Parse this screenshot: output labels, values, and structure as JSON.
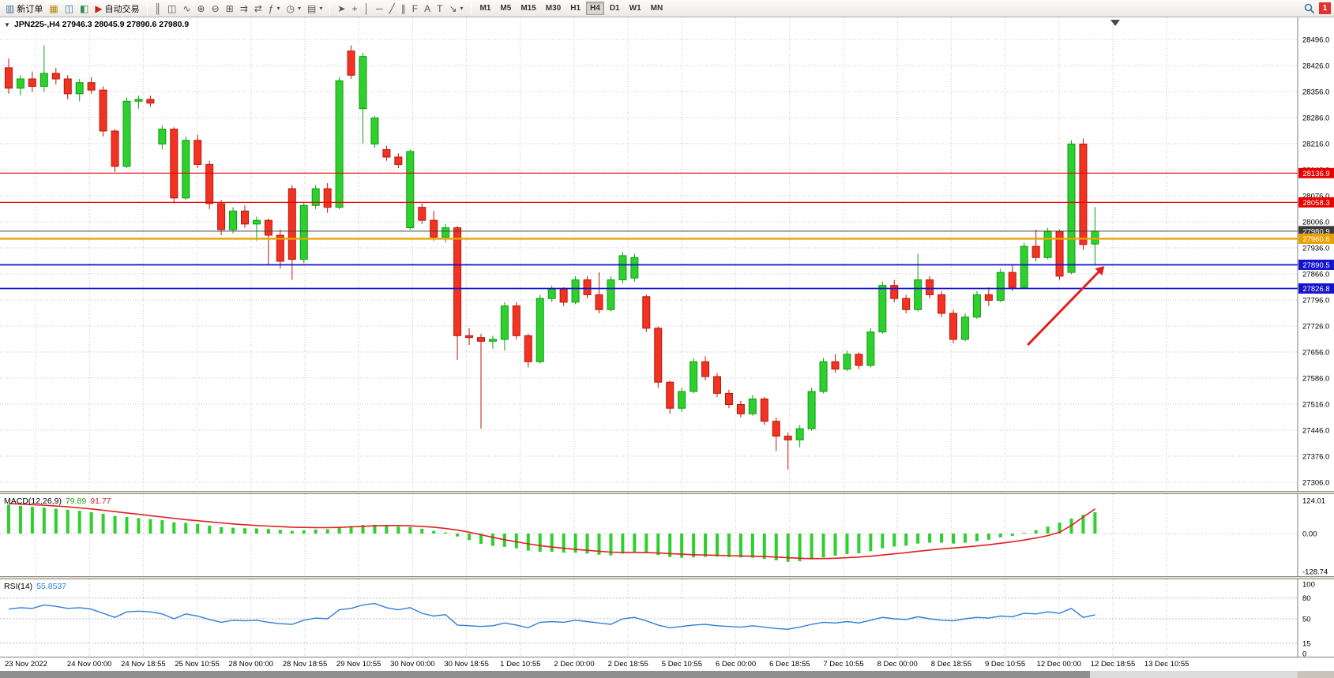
{
  "toolbar": {
    "left_buttons": [
      {
        "name": "new-order",
        "glyph": "▥",
        "glyph_color": "#3a6ea5",
        "label": "新订单"
      },
      {
        "name": "chart-window",
        "glyph": "▦",
        "glyph_color": "#b8860b"
      },
      {
        "name": "profiles",
        "glyph": "◫",
        "glyph_color": "#3a6ea5"
      },
      {
        "name": "market-watch",
        "glyph": "◧",
        "glyph_color": "#2e8b57"
      },
      {
        "name": "auto-trading",
        "glyph": "▶",
        "glyph_color": "#cc2222",
        "label": "自动交易"
      }
    ],
    "chart_buttons": [
      {
        "name": "bars-chart-type",
        "glyph": "║"
      },
      {
        "name": "candles-chart-type",
        "glyph": "◫"
      },
      {
        "name": "line-chart-type",
        "glyph": "∿"
      },
      {
        "name": "zoom-in",
        "glyph": "⊕"
      },
      {
        "name": "zoom-out",
        "glyph": "⊖"
      },
      {
        "name": "tile-windows",
        "glyph": "⊞"
      },
      {
        "name": "auto-scroll",
        "glyph": "⇉"
      },
      {
        "name": "chart-shift",
        "glyph": "⇄"
      },
      {
        "name": "indicators",
        "glyph": "ƒ",
        "dropdown": true
      },
      {
        "name": "periods",
        "glyph": "◷",
        "dropdown": true
      },
      {
        "name": "templates",
        "glyph": "▤",
        "dropdown": true
      }
    ],
    "draw_buttons": [
      {
        "name": "cursor",
        "glyph": "➤"
      },
      {
        "name": "crosshair",
        "glyph": "+"
      },
      {
        "name": "vertical-line",
        "glyph": "│"
      },
      {
        "name": "horizontal-line",
        "glyph": "─"
      },
      {
        "name": "trendline",
        "glyph": "╱"
      },
      {
        "name": "channel",
        "glyph": "∥"
      },
      {
        "name": "fibonacci",
        "glyph": "F"
      },
      {
        "name": "text",
        "glyph": "A"
      },
      {
        "name": "text-label",
        "glyph": "T"
      },
      {
        "name": "arrows",
        "glyph": "↘",
        "dropdown": true
      }
    ],
    "timeframes": [
      "M1",
      "M5",
      "M15",
      "M30",
      "H1",
      "H4",
      "D1",
      "W1",
      "MN"
    ],
    "active_timeframe": "H4",
    "notification_count": "1"
  },
  "chart": {
    "symbol": "JPN225-",
    "period": "H4",
    "title_text": "JPN225-,H4 27946.3 28045.9 27890.6 27980.9",
    "open": "27946.3",
    "high": "28045.9",
    "low": "27890.6",
    "close": "27980.9"
  },
  "chart_data": {
    "type": "candlestick",
    "symbol": "JPN225-",
    "timeframe": "H4",
    "ylim": [
      27280,
      28530
    ],
    "grid": true,
    "colors": {
      "up": "#2fcf2f",
      "up_stroke": "#0f9f0f",
      "down": "#f23222",
      "down_stroke": "#b81808",
      "grid": "#c9c9c9",
      "background": "#ffffff"
    },
    "price_ticks": [
      "28496.0",
      "28426.0",
      "28356.0",
      "28286.0",
      "28216.0",
      "28146.0",
      "28076.0",
      "28006.0",
      "27936.0",
      "27866.0",
      "27796.0",
      "27726.0",
      "27656.0",
      "27586.0",
      "27516.0",
      "27446.0",
      "27376.0",
      "27306.0"
    ],
    "time_labels": [
      "23 Nov 2022",
      "24 Nov 00:00",
      "24 Nov 18:55",
      "25 Nov 10:55",
      "28 Nov 00:00",
      "28 Nov 18:55",
      "29 Nov 10:55",
      "30 Nov 00:00",
      "30 Nov 18:55",
      "1 Dec 10:55",
      "2 Dec 00:00",
      "2 Dec 18:55",
      "5 Dec 10:55",
      "6 Dec 00:00",
      "6 Dec 18:55",
      "7 Dec 10:55",
      "8 Dec 00:00",
      "8 Dec 18:55",
      "9 Dec 10:55",
      "12 Dec 00:00",
      "12 Dec 18:55",
      "13 Dec 10:55"
    ],
    "hlines": [
      {
        "name": "resistance-1",
        "price": 28136.9,
        "label": "28136.9",
        "color": "#e80000",
        "width": 1.2
      },
      {
        "name": "resistance-2",
        "price": 28058.3,
        "label": "28058.3",
        "color": "#e80000",
        "width": 1.2
      },
      {
        "name": "current-price",
        "price": 27980.9,
        "label": "27980.9",
        "color": "#444444",
        "width": 1,
        "badge": "#3a3a3a"
      },
      {
        "name": "pivot",
        "price": 27960.6,
        "label": "27960.6",
        "color": "#e8a200",
        "width": 2.4,
        "badge": "#e8a200"
      },
      {
        "name": "support-1",
        "price": 27890.5,
        "label": "27890.5",
        "color": "#1414cc",
        "width": 1.8
      },
      {
        "name": "support-2",
        "price": 27826.8,
        "label": "27826.8",
        "color": "#1414cc",
        "width": 1.8
      }
    ],
    "candles": [
      [
        28420,
        28445,
        28350,
        28365
      ],
      [
        28365,
        28400,
        28345,
        28390
      ],
      [
        28390,
        28410,
        28355,
        28370
      ],
      [
        28370,
        28480,
        28355,
        28405
      ],
      [
        28405,
        28420,
        28375,
        28390
      ],
      [
        28390,
        28400,
        28335,
        28350
      ],
      [
        28350,
        28390,
        28330,
        28380
      ],
      [
        28380,
        28395,
        28350,
        28360
      ],
      [
        28360,
        28370,
        28235,
        28250
      ],
      [
        28250,
        28255,
        28140,
        28155
      ],
      [
        28155,
        28340,
        28150,
        28330
      ],
      [
        28330,
        28345,
        28310,
        28335
      ],
      [
        28335,
        28345,
        28315,
        28325
      ],
      [
        28215,
        28265,
        28200,
        28255
      ],
      [
        28255,
        28260,
        28055,
        28070
      ],
      [
        28070,
        28235,
        28065,
        28225
      ],
      [
        28225,
        28240,
        28150,
        28160
      ],
      [
        28160,
        28170,
        28040,
        28055
      ],
      [
        28055,
        28065,
        27970,
        27985
      ],
      [
        27985,
        28045,
        27975,
        28035
      ],
      [
        28035,
        28050,
        27990,
        28000
      ],
      [
        28000,
        28020,
        27955,
        28010
      ],
      [
        28010,
        28015,
        27890,
        27970
      ],
      [
        27970,
        27985,
        27880,
        27900
      ],
      [
        28095,
        28105,
        27850,
        27905
      ],
      [
        27905,
        28060,
        27895,
        28050
      ],
      [
        28050,
        28105,
        28040,
        28095
      ],
      [
        28095,
        28110,
        28030,
        28045
      ],
      [
        28045,
        28395,
        28040,
        28385
      ],
      [
        28465,
        28480,
        28390,
        28400
      ],
      [
        28310,
        28460,
        28215,
        28450
      ],
      [
        28215,
        28290,
        28205,
        28285
      ],
      [
        28200,
        28210,
        28170,
        28180
      ],
      [
        28180,
        28190,
        28150,
        28160
      ],
      [
        27990,
        28200,
        27985,
        28195
      ],
      [
        28045,
        28055,
        28000,
        28010
      ],
      [
        28010,
        28035,
        27955,
        27965
      ],
      [
        27965,
        28000,
        27950,
        27990
      ],
      [
        27990,
        27995,
        27635,
        27700
      ],
      [
        27700,
        27720,
        27675,
        27695
      ],
      [
        27695,
        27705,
        27450,
        27685
      ],
      [
        27685,
        27700,
        27665,
        27690
      ],
      [
        27690,
        27790,
        27660,
        27780
      ],
      [
        27780,
        27790,
        27690,
        27700
      ],
      [
        27700,
        27705,
        27615,
        27630
      ],
      [
        27630,
        27810,
        27625,
        27800
      ],
      [
        27800,
        27835,
        27790,
        27825
      ],
      [
        27825,
        27830,
        27780,
        27790
      ],
      [
        27790,
        27860,
        27785,
        27850
      ],
      [
        27850,
        27860,
        27800,
        27810
      ],
      [
        27810,
        27870,
        27760,
        27770
      ],
      [
        27770,
        27860,
        27765,
        27850
      ],
      [
        27850,
        27925,
        27840,
        27915
      ],
      [
        27855,
        27920,
        27845,
        27910
      ],
      [
        27805,
        27810,
        27710,
        27720
      ],
      [
        27720,
        27725,
        27560,
        27575
      ],
      [
        27575,
        27580,
        27490,
        27505
      ],
      [
        27505,
        27560,
        27495,
        27550
      ],
      [
        27550,
        27640,
        27545,
        27630
      ],
      [
        27630,
        27645,
        27580,
        27590
      ],
      [
        27590,
        27600,
        27535,
        27545
      ],
      [
        27545,
        27555,
        27505,
        27515
      ],
      [
        27515,
        27525,
        27480,
        27490
      ],
      [
        27490,
        27540,
        27485,
        27530
      ],
      [
        27530,
        27535,
        27460,
        27470
      ],
      [
        27470,
        27480,
        27390,
        27430
      ],
      [
        27430,
        27440,
        27340,
        27420
      ],
      [
        27420,
        27460,
        27400,
        27450
      ],
      [
        27450,
        27560,
        27445,
        27550
      ],
      [
        27550,
        27640,
        27545,
        27630
      ],
      [
        27630,
        27650,
        27600,
        27610
      ],
      [
        27610,
        27660,
        27605,
        27650
      ],
      [
        27650,
        27655,
        27610,
        27620
      ],
      [
        27620,
        27720,
        27615,
        27710
      ],
      [
        27710,
        27845,
        27705,
        27835
      ],
      [
        27835,
        27850,
        27790,
        27800
      ],
      [
        27800,
        27810,
        27760,
        27770
      ],
      [
        27770,
        27920,
        27765,
        27850
      ],
      [
        27850,
        27860,
        27800,
        27810
      ],
      [
        27810,
        27820,
        27750,
        27760
      ],
      [
        27760,
        27770,
        27680,
        27690
      ],
      [
        27690,
        27760,
        27685,
        27750
      ],
      [
        27750,
        27820,
        27745,
        27810
      ],
      [
        27810,
        27830,
        27780,
        27795
      ],
      [
        27795,
        27880,
        27790,
        27870
      ],
      [
        27870,
        27890,
        27820,
        27830
      ],
      [
        27830,
        27950,
        27825,
        27940
      ],
      [
        27940,
        27985,
        27900,
        27910
      ],
      [
        27910,
        27990,
        27905,
        27980
      ],
      [
        27980,
        27985,
        27850,
        27860
      ],
      [
        27870,
        28225,
        27865,
        28215
      ],
      [
        28215,
        28230,
        27930,
        27945
      ],
      [
        27946.3,
        28045.9,
        27890.6,
        27980.9
      ]
    ],
    "macd": {
      "label": "MACD(12,26,9)",
      "value_main": "79.89",
      "value_signal": "91.77",
      "signal_color": "#e02020",
      "scale": [
        {
          "label": "124.01",
          "value": 124.01
        },
        {
          "label": "0.00",
          "value": 0
        },
        {
          "label": "-128.74",
          "value": -128.74
        }
      ],
      "histogram": [
        108,
        104,
        100,
        97,
        93,
        89,
        85,
        80,
        74,
        66,
        62,
        58,
        54,
        50,
        42,
        40,
        36,
        30,
        24,
        22,
        20,
        19,
        17,
        14,
        10,
        12,
        15,
        16,
        22,
        28,
        32,
        33,
        30,
        26,
        24,
        18,
        10,
        4,
        -10,
        -22,
        -35,
        -42,
        -45,
        -50,
        -58,
        -62,
        -62,
        -65,
        -65,
        -68,
        -72,
        -74,
        -68,
        -62,
        -65,
        -73,
        -80,
        -82,
        -81,
        -79,
        -78,
        -80,
        -81,
        -82,
        -86,
        -91,
        -96,
        -94,
        -88,
        -81,
        -75,
        -70,
        -67,
        -60,
        -50,
        -44,
        -41,
        -34,
        -31,
        -31,
        -34,
        -31,
        -26,
        -21,
        -13,
        -8,
        3,
        13,
        26,
        41,
        56,
        70,
        79.89
      ],
      "signal": [
        112,
        110,
        108,
        106,
        103,
        100,
        96,
        92,
        87,
        82,
        77,
        72,
        67,
        62,
        57,
        52,
        48,
        44,
        40,
        36,
        33,
        30,
        28,
        26,
        24,
        23,
        22,
        22,
        23,
        25,
        27,
        29,
        30,
        30,
        29,
        27,
        24,
        19,
        13,
        5,
        -4,
        -13,
        -21,
        -28,
        -35,
        -41,
        -46,
        -50,
        -54,
        -57,
        -60,
        -63,
        -64,
        -64,
        -65,
        -66,
        -68,
        -70,
        -72,
        -73,
        -74,
        -75,
        -76,
        -77,
        -78,
        -80,
        -82,
        -84,
        -85,
        -85,
        -84,
        -82,
        -80,
        -77,
        -73,
        -69,
        -65,
        -60,
        -56,
        -52,
        -49,
        -46,
        -42,
        -38,
        -33,
        -28,
        -22,
        -15,
        -7,
        5,
        30,
        62,
        91.77
      ]
    },
    "rsi": {
      "label": "RSI(14)",
      "value": "55.8537",
      "line_color": "#2f7ed8",
      "scale": [
        {
          "label": "100",
          "value": 100
        },
        {
          "label": "80",
          "value": 80,
          "level": true
        },
        {
          "label": "50",
          "value": 50,
          "level": true
        },
        {
          "label": "15",
          "value": 15,
          "level": true
        },
        {
          "label": "0",
          "value": 0
        }
      ],
      "values": [
        64,
        66,
        65,
        70,
        68,
        65,
        66,
        64,
        58,
        52,
        60,
        61,
        60,
        57,
        50,
        57,
        54,
        49,
        45,
        48,
        47,
        48,
        45,
        43,
        42,
        48,
        51,
        50,
        63,
        65,
        70,
        72,
        66,
        63,
        66,
        58,
        54,
        56,
        41,
        40,
        39,
        40,
        44,
        41,
        37,
        45,
        46,
        45,
        48,
        46,
        44,
        42,
        50,
        52,
        47,
        41,
        37,
        39,
        41,
        42,
        40,
        39,
        38,
        40,
        38,
        36,
        35,
        38,
        42,
        45,
        44,
        46,
        44,
        48,
        52,
        50,
        49,
        53,
        50,
        48,
        47,
        50,
        52,
        51,
        54,
        53,
        58,
        57,
        60,
        58,
        65,
        52,
        55.85
      ]
    },
    "arrow": {
      "from_index": 86.3,
      "from_price": 27675,
      "to_index": 92.8,
      "to_price": 27887,
      "color": "#e02020"
    }
  }
}
